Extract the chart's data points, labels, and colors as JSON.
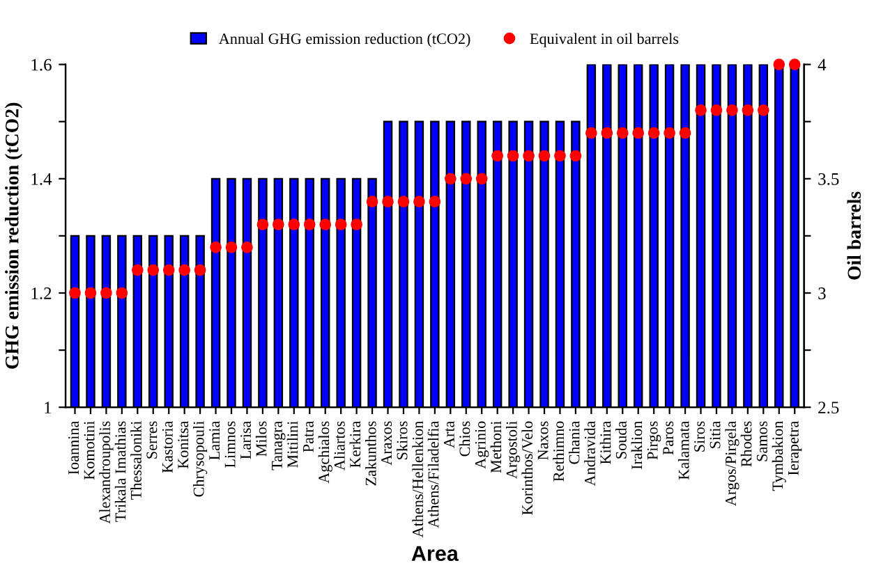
{
  "chart_data": {
    "type": "bar",
    "xlabel": "Area",
    "ylabel": "GHG emission reduction (tCO2)",
    "y2label": "Oil barrels",
    "categories": [
      "Ioannina",
      "Komotini",
      "Alexandroupolis",
      "Trikala Imathias",
      "Thessaloniki",
      "Serres",
      "Kastoria",
      "Konitsa",
      "Chrysopouli",
      "Lamia",
      "Limnos",
      "Larisa",
      "Milos",
      "Tanagra",
      "Mitilini",
      "Patra",
      "Agchialos",
      "Aliartos",
      "Kerkira",
      "Zakunthos",
      "Araxos",
      "Skiros",
      "Athens/Hellenkion",
      "Athens/Filadelfia",
      "Arta",
      "Chios",
      "Agrinio",
      "Methoni",
      "Argostoli",
      "Korinthos/Velo",
      "Naxos",
      "Rethimno",
      "Chania",
      "Andravida",
      "Kithira",
      "Souda",
      "Iraklion",
      "Pirgos",
      "Paros",
      "Kalamata",
      "Siros",
      "Sitia",
      "Argos/Pirgela",
      "Rhodes",
      "Samos",
      "Tymbakion",
      "Ierapetra"
    ],
    "series": [
      {
        "name": "Annual GHG emission reduction (tCO2)",
        "color": "#0000ff",
        "values": [
          1.3,
          1.3,
          1.3,
          1.3,
          1.3,
          1.3,
          1.3,
          1.3,
          1.3,
          1.4,
          1.4,
          1.4,
          1.4,
          1.4,
          1.4,
          1.4,
          1.4,
          1.4,
          1.4,
          1.4,
          1.5,
          1.5,
          1.5,
          1.5,
          1.5,
          1.5,
          1.5,
          1.5,
          1.5,
          1.5,
          1.5,
          1.5,
          1.5,
          1.6,
          1.6,
          1.6,
          1.6,
          1.6,
          1.6,
          1.6,
          1.6,
          1.6,
          1.6,
          1.6,
          1.6,
          1.6,
          1.6
        ]
      },
      {
        "name": "Equivalent in oil barrels",
        "type": "scatter",
        "axis": "y2",
        "color": "#ff0000",
        "values": [
          3.0,
          3.0,
          3.0,
          3.0,
          3.1,
          3.1,
          3.1,
          3.1,
          3.1,
          3.2,
          3.2,
          3.2,
          3.3,
          3.3,
          3.3,
          3.3,
          3.3,
          3.3,
          3.3,
          3.4,
          3.4,
          3.4,
          3.4,
          3.4,
          3.5,
          3.5,
          3.5,
          3.6,
          3.6,
          3.6,
          3.6,
          3.6,
          3.6,
          3.7,
          3.7,
          3.7,
          3.7,
          3.7,
          3.7,
          3.7,
          3.8,
          3.8,
          3.8,
          3.8,
          3.8,
          4.0,
          4.0
        ]
      }
    ],
    "ylim": [
      1,
      1.6
    ],
    "yticks": [
      1,
      {
        "value": 1.1,
        "label": null
      },
      1.2,
      {
        "value": 1.3,
        "label": null
      },
      1.4,
      {
        "value": 1.5,
        "label": null
      },
      1.6
    ],
    "y2lim": [
      2.5,
      4
    ],
    "y2ticks": [
      2.5,
      {
        "value": 2.75,
        "label": null
      },
      3,
      {
        "value": 3.25,
        "label": null
      },
      3.5,
      {
        "value": 3.75,
        "label": null
      },
      4
    ],
    "legend": "top",
    "marker": "circle",
    "grid": false
  }
}
